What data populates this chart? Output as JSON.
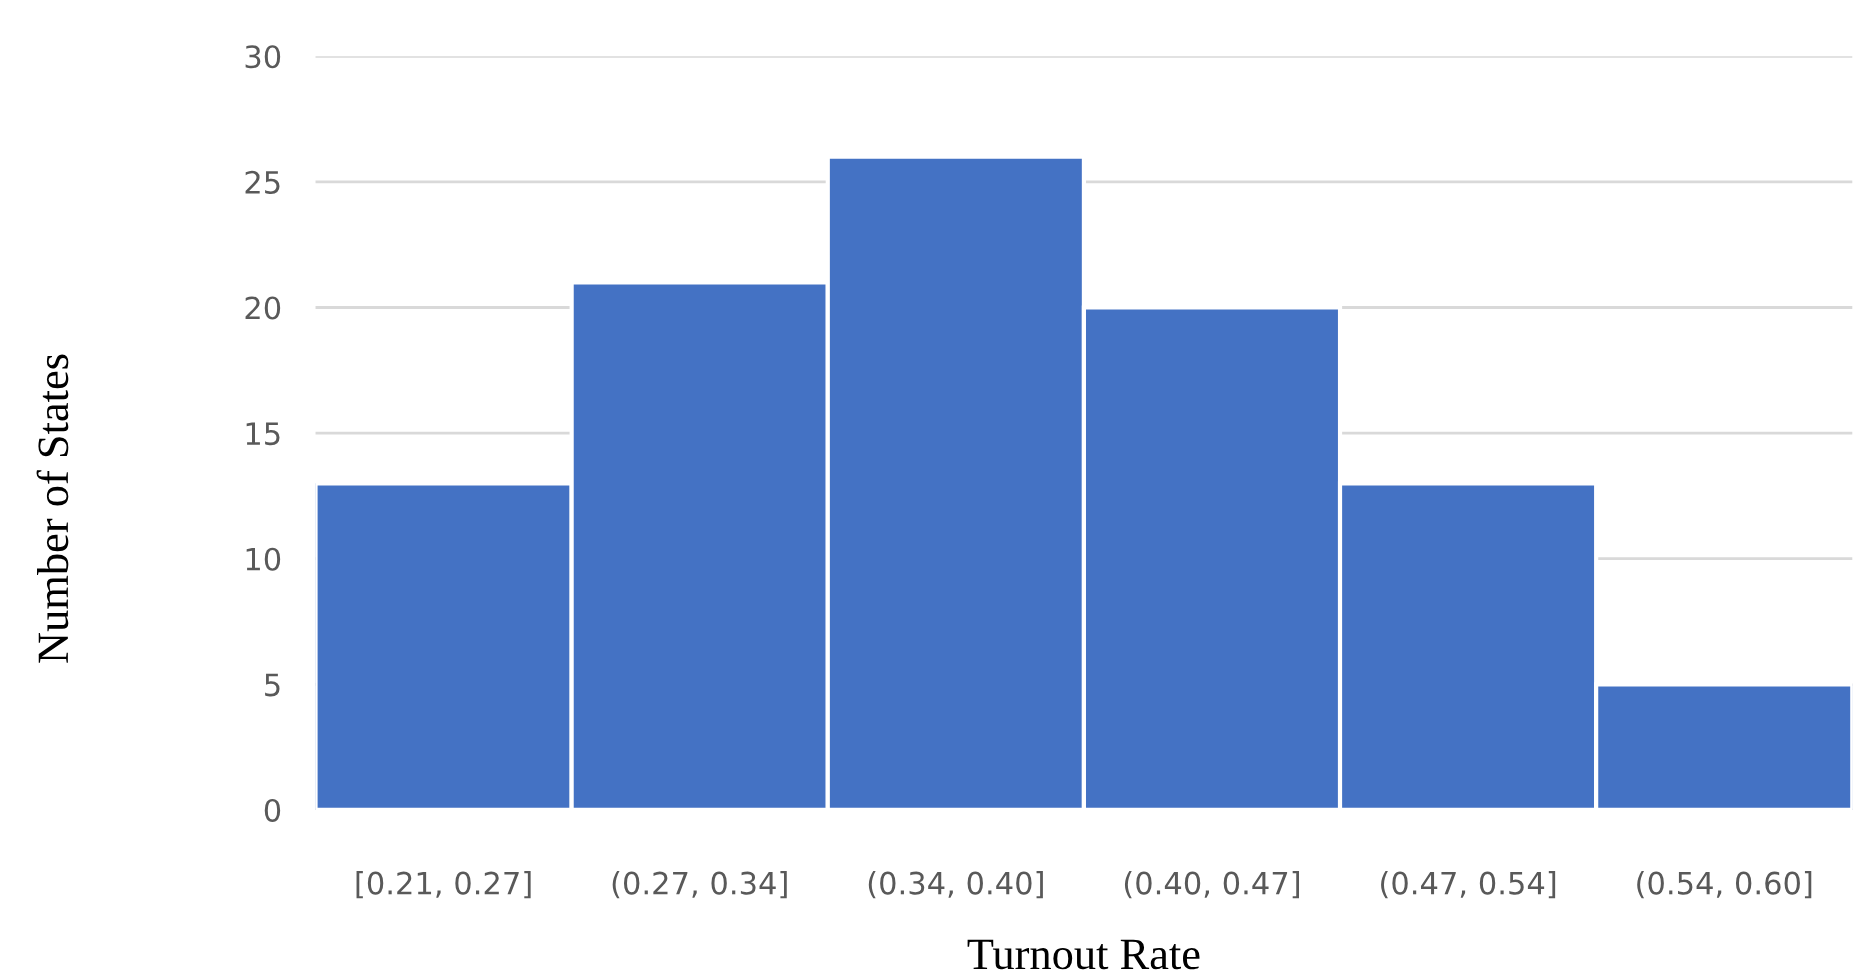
{
  "chart_data": {
    "type": "bar",
    "xlabel": "Turnout Rate",
    "ylabel": "Number of States",
    "categories": [
      "[0.21, 0.27]",
      "(0.27, 0.34]",
      "(0.34, 0.40]",
      "(0.40, 0.47]",
      "(0.47, 0.54]",
      "(0.54, 0.60]"
    ],
    "values": [
      13,
      21,
      26,
      20,
      13,
      5
    ],
    "color": "#4472c4",
    "ylim": [
      0,
      30
    ],
    "yticks": [
      0,
      5,
      10,
      15,
      20,
      25,
      30
    ],
    "grid": "y",
    "legend": false
  }
}
